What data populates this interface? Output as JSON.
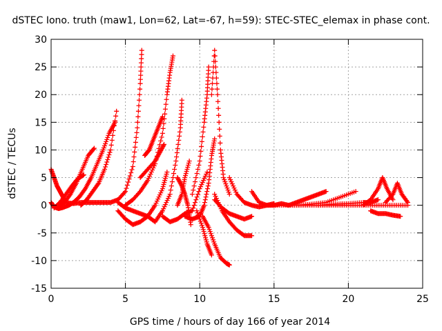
{
  "chart_data": {
    "type": "scatter",
    "title": "dSTEC Iono. truth (maw1, Lon=62, Lat=-67, h=59): STEC-STEC_elemax in phase cont.",
    "xlabel": "GPS time / hours of day 166 of year 2014",
    "ylabel": "dSTEC  / TECUs",
    "xlim": [
      0,
      25
    ],
    "ylim": [
      -15,
      30
    ],
    "x_ticks": [
      0,
      5,
      10,
      15,
      20,
      25
    ],
    "y_ticks": [
      -15,
      -10,
      -5,
      0,
      5,
      10,
      15,
      20,
      25,
      30
    ],
    "x_tick_labels": [
      "0",
      "5",
      "10",
      "15",
      "20",
      "25"
    ],
    "y_tick_labels": [
      "-15",
      "-10",
      "-5",
      "0",
      "5",
      "10",
      "15",
      "20",
      "25",
      "30"
    ],
    "grid": true,
    "marker": "+",
    "color": "#ff0000",
    "series": [
      {
        "x": [
          0.0,
          0.2,
          0.4,
          0.6,
          0.8,
          1.0
        ],
        "y": [
          6.5,
          5.0,
          3.5,
          2.5,
          1.5,
          0.5
        ]
      },
      {
        "x": [
          0.0,
          0.2,
          0.5,
          0.8,
          1.2,
          1.5
        ],
        "y": [
          0.5,
          -0.3,
          -0.6,
          -0.4,
          0.0,
          0.5
        ]
      },
      {
        "x": [
          0.2,
          0.6,
          1.0,
          1.4,
          1.8,
          2.2
        ],
        "y": [
          -0.5,
          0.5,
          2.0,
          3.5,
          4.8,
          5.5
        ]
      },
      {
        "x": [
          0.5,
          0.9,
          1.3,
          1.7,
          2.1,
          2.5,
          2.9
        ],
        "y": [
          -0.3,
          0.5,
          2.0,
          4.0,
          6.5,
          9.0,
          10.3
        ]
      },
      {
        "x": [
          1.5,
          1.9,
          2.3,
          2.7,
          3.1,
          3.5,
          3.9,
          4.3
        ],
        "y": [
          0.5,
          1.5,
          3.0,
          5.0,
          7.5,
          10.0,
          13.0,
          15.0
        ]
      },
      {
        "x": [
          2.0,
          2.4,
          2.8,
          3.2,
          3.6,
          4.0,
          4.4
        ],
        "y": [
          0.0,
          1.0,
          2.5,
          4.0,
          6.5,
          10.0,
          17.0
        ]
      },
      {
        "x": [
          1.0,
          1.5,
          2.0,
          2.5,
          3.0,
          3.5,
          4.0,
          4.5,
          5.0,
          5.5,
          5.8,
          6.0,
          6.1
        ],
        "y": [
          0.5,
          0.3,
          0.5,
          0.5,
          0.5,
          0.5,
          0.5,
          1.0,
          2.5,
          7.0,
          14.0,
          22.0,
          28.0
        ]
      },
      {
        "x": [
          4.5,
          5.0,
          5.5,
          6.0,
          6.5,
          7.0,
          7.5,
          7.8
        ],
        "y": [
          -1.0,
          -2.5,
          -3.5,
          -3.0,
          -2.0,
          0.0,
          3.0,
          6.0
        ]
      },
      {
        "x": [
          5.0,
          5.5,
          6.0,
          6.5,
          7.0,
          7.5,
          7.8,
          8.0,
          8.2
        ],
        "y": [
          0.0,
          1.0,
          2.5,
          4.5,
          7.5,
          13.0,
          20.0,
          24.0,
          27.0
        ]
      },
      {
        "x": [
          4.5,
          5.0,
          5.5,
          6.0,
          6.5,
          7.0,
          7.5,
          8.0,
          8.4,
          8.7,
          8.8
        ],
        "y": [
          0.5,
          -0.5,
          -1.0,
          -1.5,
          -2.0,
          -3.0,
          -1.0,
          2.0,
          8.0,
          14.0,
          19.0
        ]
      },
      {
        "x": [
          6.0,
          6.5,
          7.0,
          7.3,
          7.6
        ],
        "y": [
          5.0,
          6.5,
          8.0,
          9.5,
          11.0
        ]
      },
      {
        "x": [
          6.3,
          6.6,
          6.9,
          7.2,
          7.5
        ],
        "y": [
          9.0,
          10.0,
          12.0,
          14.0,
          16.0
        ]
      },
      {
        "x": [
          7.5,
          8.0,
          8.5,
          9.0,
          9.5,
          10.0,
          10.5
        ],
        "y": [
          -2.0,
          -3.0,
          -2.5,
          -1.5,
          -1.0,
          3.0,
          6.0
        ]
      },
      {
        "x": [
          8.5,
          8.8,
          9.0,
          9.3
        ],
        "y": [
          0.0,
          2.0,
          5.0,
          8.0
        ]
      },
      {
        "x": [
          8.5,
          8.8,
          9.0,
          9.2,
          9.4
        ],
        "y": [
          5.0,
          3.5,
          2.0,
          0.0,
          -3.5
        ]
      },
      {
        "x": [
          9.0,
          9.5,
          10.0,
          10.3,
          10.6,
          10.8,
          11.0
        ],
        "y": [
          -2.0,
          -2.5,
          -2.0,
          0.0,
          4.0,
          9.0,
          12.0
        ]
      },
      {
        "x": [
          9.5,
          10.0,
          10.3,
          10.5,
          10.6
        ],
        "y": [
          2.0,
          8.0,
          15.0,
          20.0,
          25.0
        ]
      },
      {
        "x": [
          9.8,
          10.2,
          10.5,
          10.8
        ],
        "y": [
          -1.0,
          -4.0,
          -7.0,
          -9.0
        ]
      },
      {
        "x": [
          10.2,
          10.6,
          11.0,
          11.4,
          11.8,
          12.0
        ],
        "y": [
          -2.0,
          -4.0,
          -7.0,
          -9.5,
          -10.5,
          -10.8
        ]
      },
      {
        "x": [
          10.8,
          11.0,
          11.2,
          11.4,
          11.6,
          12.0
        ],
        "y": [
          20.0,
          28.0,
          20.0,
          10.0,
          5.0,
          2.0
        ]
      },
      {
        "x": [
          11.0,
          11.5,
          12.0,
          12.5,
          13.0,
          13.5
        ],
        "y": [
          2.0,
          -1.0,
          -3.0,
          -4.5,
          -5.5,
          -5.5
        ]
      },
      {
        "x": [
          11.0,
          11.5,
          12.0,
          12.5,
          13.0,
          13.5
        ],
        "y": [
          1.0,
          -0.5,
          -1.5,
          -2.0,
          -2.5,
          -2.0
        ]
      },
      {
        "x": [
          12.0,
          12.5,
          13.0,
          13.5,
          14.0,
          14.5,
          15.0
        ],
        "y": [
          5.0,
          2.0,
          0.5,
          0.0,
          -0.3,
          0.0,
          0.3
        ]
      },
      {
        "x": [
          13.5,
          14.0,
          14.5,
          15.0,
          15.5,
          16.0,
          16.5,
          17.0,
          17.5,
          18.0,
          18.5
        ],
        "y": [
          2.5,
          0.5,
          0.0,
          0.0,
          0.3,
          0.0,
          0.5,
          1.0,
          1.5,
          2.0,
          2.5
        ]
      },
      {
        "x": [
          14.5,
          15.5,
          16.5,
          17.5,
          18.5,
          19.5,
          20.5
        ],
        "y": [
          0.0,
          0.0,
          0.0,
          0.2,
          0.5,
          1.5,
          2.5
        ]
      },
      {
        "x": [
          16.0,
          17.0,
          18.0,
          19.0,
          20.0,
          21.0,
          21.5,
          22.0
        ],
        "y": [
          0.0,
          0.0,
          0.0,
          0.2,
          0.3,
          0.5,
          0.5,
          1.0
        ]
      },
      {
        "x": [
          21.0,
          21.5,
          22.0,
          22.3,
          22.6,
          23.0
        ],
        "y": [
          0.0,
          1.0,
          3.0,
          5.0,
          3.0,
          1.0
        ]
      },
      {
        "x": [
          21.5,
          22.0,
          22.5,
          23.0,
          23.5
        ],
        "y": [
          -1.0,
          -1.5,
          -1.5,
          -1.8,
          -2.0
        ]
      },
      {
        "x": [
          22.5,
          23.0,
          23.3,
          23.6,
          24.0
        ],
        "y": [
          0.5,
          2.0,
          4.0,
          2.0,
          0.5
        ]
      },
      {
        "x": [
          18.0,
          19.0,
          20.0,
          21.0,
          22.0,
          23.0,
          24.0
        ],
        "y": [
          0.0,
          0.0,
          0.0,
          0.0,
          0.0,
          0.0,
          0.0
        ]
      }
    ]
  }
}
